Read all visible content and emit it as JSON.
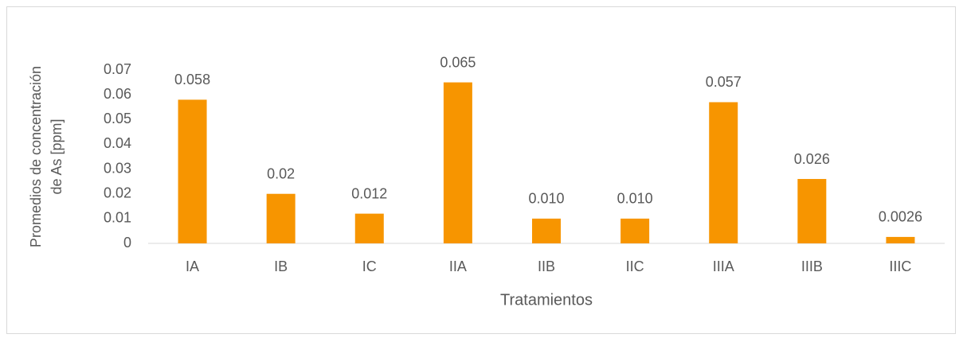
{
  "chart_data": {
    "type": "bar",
    "ylabel": [
      "Promedios de concentración",
      "de As [ppm]"
    ],
    "xlabel": "Tratamientos",
    "categories": [
      "IA",
      "IB",
      "IC",
      "IIA",
      "IIB",
      "IIC",
      "IIIA",
      "IIIB",
      "IIIC"
    ],
    "values": [
      0.058,
      0.02,
      0.012,
      0.065,
      0.01,
      0.01,
      0.057,
      0.026,
      0.0026
    ],
    "value_labels": [
      "0.058",
      "0.02",
      "0.012",
      "0.065",
      "0.010",
      "0.010",
      "0.057",
      "0.026",
      "0.0026"
    ],
    "color": "#f79500",
    "ylim": [
      0,
      0.07
    ],
    "yticks": [
      0,
      0.01,
      0.02,
      0.03,
      0.04,
      0.05,
      0.06,
      0.07
    ],
    "grid": false
  }
}
